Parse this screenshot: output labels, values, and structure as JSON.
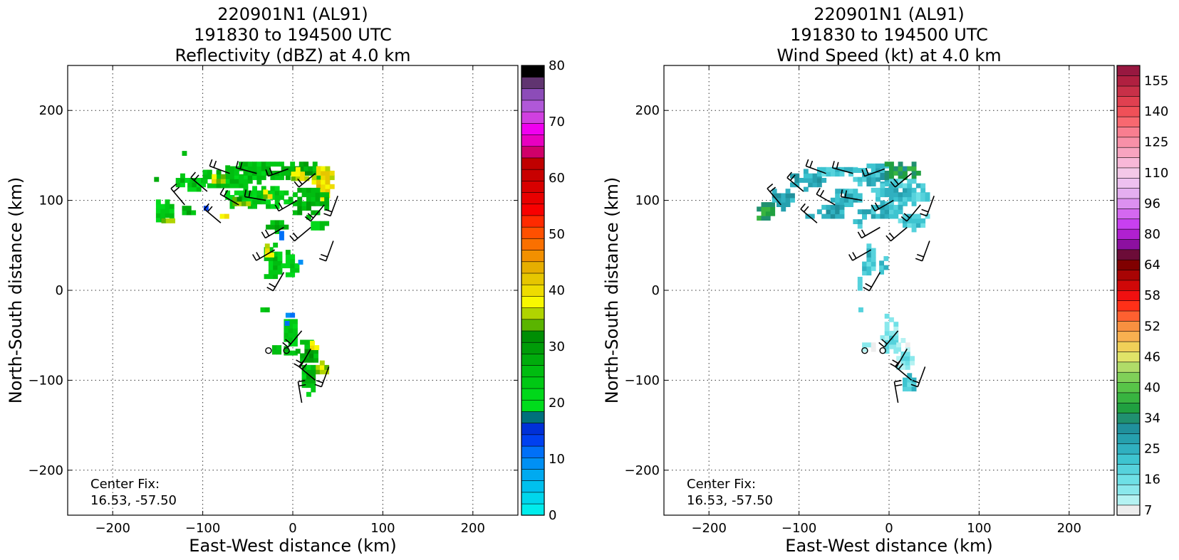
{
  "chart_data": [
    {
      "type": "heatmap",
      "title_lines": [
        "220901N1 (AL91)",
        "191830 to 194500 UTC",
        "Reflectivity (dBZ) at 4.0 km"
      ],
      "xlabel": "East-West distance (km)",
      "ylabel": "North-South distance (km)",
      "xlim": [
        -250,
        250
      ],
      "ylim": [
        -250,
        250
      ],
      "xticks": [
        -200,
        -100,
        0,
        100,
        200
      ],
      "yticks": [
        -200,
        -100,
        0,
        100,
        200
      ],
      "grid": true,
      "annotation": [
        "Center Fix:",
        "16.53, -57.50"
      ],
      "colorbar": {
        "label_values": [
          0,
          10,
          20,
          30,
          40,
          50,
          60,
          70,
          80
        ],
        "labels": [
          "0",
          "10",
          "20",
          "30",
          "40",
          "50",
          "60",
          "70",
          "80"
        ],
        "range": [
          0,
          80
        ],
        "colors": [
          "#00ecec",
          "#00d6ec",
          "#00c0ee",
          "#00aaf0",
          "#0090f4",
          "#0070f8",
          "#0040f0",
          "#0030d8",
          "#00707c",
          "#00dc1c",
          "#00d81a",
          "#00c814",
          "#00bc10",
          "#00ac0c",
          "#009c08",
          "#008e04",
          "#5ab400",
          "#b0d400",
          "#f8f800",
          "#eedc00",
          "#e6c600",
          "#e6ae00",
          "#f29000",
          "#fa7000",
          "#ff5000",
          "#ff2a00",
          "#f80000",
          "#e80000",
          "#d80000",
          "#c80000",
          "#c00000",
          "#d0006a",
          "#e800c0",
          "#f000f0",
          "#d040e0",
          "#b058d8",
          "#8c4cb8",
          "#603470",
          "#000000"
        ]
      },
      "echo_cells": [
        {
          "x": -110,
          "y": 115,
          "rx": 12,
          "ry": 10,
          "dbz": 24
        },
        {
          "x": -95,
          "y": 125,
          "rx": 6,
          "ry": 6,
          "dbz": 38
        },
        {
          "x": -75,
          "y": 122,
          "rx": 30,
          "ry": 13,
          "dbz": 25
        },
        {
          "x": -85,
          "y": 120,
          "rx": 10,
          "ry": 6,
          "dbz": 37
        },
        {
          "x": -125,
          "y": 118,
          "rx": 10,
          "ry": 8,
          "dbz": 23
        },
        {
          "x": -40,
          "y": 130,
          "rx": 35,
          "ry": 12,
          "dbz": 26
        },
        {
          "x": 10,
          "y": 130,
          "rx": 28,
          "ry": 12,
          "dbz": 28
        },
        {
          "x": 5,
          "y": 125,
          "rx": 12,
          "ry": 8,
          "dbz": 38
        },
        {
          "x": 30,
          "y": 115,
          "rx": 14,
          "ry": 22,
          "dbz": 39
        },
        {
          "x": -40,
          "y": 100,
          "rx": 40,
          "ry": 14,
          "dbz": 24
        },
        {
          "x": 15,
          "y": 95,
          "rx": 25,
          "ry": 16,
          "dbz": 27
        },
        {
          "x": -60,
          "y": 95,
          "rx": 12,
          "ry": 6,
          "dbz": 36
        },
        {
          "x": -30,
          "y": 103,
          "rx": 8,
          "ry": 6,
          "dbz": 37
        },
        {
          "x": -145,
          "y": 85,
          "rx": 12,
          "ry": 14,
          "dbz": 24
        },
        {
          "x": -140,
          "y": 75,
          "rx": 6,
          "ry": 5,
          "dbz": 38
        },
        {
          "x": -120,
          "y": 85,
          "rx": 8,
          "ry": 6,
          "dbz": 26
        },
        {
          "x": -80,
          "y": 80,
          "rx": 6,
          "ry": 5,
          "dbz": 37
        },
        {
          "x": -20,
          "y": 70,
          "rx": 15,
          "ry": 7,
          "dbz": 25
        },
        {
          "x": 25,
          "y": 70,
          "rx": 15,
          "ry": 8,
          "dbz": 24
        },
        {
          "x": -25,
          "y": 30,
          "rx": 12,
          "ry": 22,
          "dbz": 26
        },
        {
          "x": -30,
          "y": 40,
          "rx": 6,
          "ry": 8,
          "dbz": 37
        },
        {
          "x": -5,
          "y": 25,
          "rx": 8,
          "ry": 20,
          "dbz": 24
        },
        {
          "x": 5,
          "y": 30,
          "rx": 4,
          "ry": 6,
          "dbz": 11
        },
        {
          "x": -5,
          "y": -55,
          "rx": 10,
          "ry": 22,
          "dbz": 25
        },
        {
          "x": 15,
          "y": -70,
          "rx": 12,
          "ry": 15,
          "dbz": 27
        },
        {
          "x": 20,
          "y": -65,
          "rx": 6,
          "ry": 6,
          "dbz": 38
        },
        {
          "x": 30,
          "y": -90,
          "rx": 10,
          "ry": 8,
          "dbz": 38
        },
        {
          "x": 15,
          "y": -100,
          "rx": 10,
          "ry": 18,
          "dbz": 25
        },
        {
          "x": -35,
          "y": -25,
          "rx": 6,
          "ry": 4,
          "dbz": 25
        },
        {
          "x": -10,
          "y": -40,
          "rx": 4,
          "ry": 4,
          "dbz": 10
        },
        {
          "x": -5,
          "y": -30,
          "rx": 3,
          "ry": 5,
          "dbz": 11
        },
        {
          "x": -20,
          "y": -70,
          "rx": 8,
          "ry": 6,
          "dbz": 24
        },
        {
          "x": -100,
          "y": 90,
          "rx": 4,
          "ry": 6,
          "dbz": 11
        },
        {
          "x": -15,
          "y": 60,
          "rx": 5,
          "ry": 4,
          "dbz": 11
        },
        {
          "x": -155,
          "y": 120,
          "rx": 4,
          "ry": 4,
          "dbz": 25
        },
        {
          "x": -125,
          "y": 148,
          "rx": 8,
          "ry": 3,
          "dbz": 25
        }
      ],
      "center_circles": [
        {
          "x": -27,
          "y": -67
        },
        {
          "x": -7,
          "y": -67
        }
      ],
      "wind_barbs": [
        {
          "x": -120,
          "y": 95,
          "ang": 50
        },
        {
          "x": -95,
          "y": 110,
          "ang": 40
        },
        {
          "x": -70,
          "y": 130,
          "ang": 20
        },
        {
          "x": -40,
          "y": 130,
          "ang": 15
        },
        {
          "x": -5,
          "y": 135,
          "ang": -20
        },
        {
          "x": 25,
          "y": 130,
          "ang": -40
        },
        {
          "x": 50,
          "y": 105,
          "ang": -70
        },
        {
          "x": -60,
          "y": 95,
          "ang": 30
        },
        {
          "x": -30,
          "y": 100,
          "ang": 10
        },
        {
          "x": 5,
          "y": 100,
          "ang": -30
        },
        {
          "x": 35,
          "y": 95,
          "ang": -50
        },
        {
          "x": -80,
          "y": 75,
          "ang": 40
        },
        {
          "x": -10,
          "y": 70,
          "ang": -30
        },
        {
          "x": 20,
          "y": 70,
          "ang": -40
        },
        {
          "x": 45,
          "y": 55,
          "ang": -70
        },
        {
          "x": -20,
          "y": 45,
          "ang": -30
        },
        {
          "x": -10,
          "y": 20,
          "ang": -60
        },
        {
          "x": 10,
          "y": -45,
          "ang": -50
        },
        {
          "x": 20,
          "y": -65,
          "ang": -60
        },
        {
          "x": 40,
          "y": -85,
          "ang": -70
        },
        {
          "x": 25,
          "y": -100,
          "ang": 40
        },
        {
          "x": 10,
          "y": -125,
          "ang": 80
        }
      ]
    },
    {
      "type": "heatmap",
      "title_lines": [
        "220901N1 (AL91)",
        "191830 to 194500 UTC",
        "Wind Speed (kt) at 4.0 km"
      ],
      "xlabel": "East-West distance (km)",
      "ylabel": "North-South distance (km)",
      "xlim": [
        -250,
        250
      ],
      "ylim": [
        -250,
        250
      ],
      "xticks": [
        -200,
        -100,
        0,
        100,
        200
      ],
      "yticks": [
        -200,
        -100,
        0,
        100,
        200
      ],
      "grid": true,
      "annotation": [
        "Center Fix:",
        "16.53, -57.50"
      ],
      "colorbar": {
        "labels": [
          "7",
          "16",
          "25",
          "34",
          "40",
          "46",
          "52",
          "58",
          "64",
          "80",
          "96",
          "110",
          "125",
          "140",
          "155"
        ],
        "colors": [
          "#ededed",
          "#b4f2f2",
          "#8ae8ec",
          "#6ee0e6",
          "#56d2dc",
          "#3ec4d0",
          "#30b0c0",
          "#26a0ae",
          "#20909c",
          "#209070",
          "#20a040",
          "#38b440",
          "#58c448",
          "#80d058",
          "#b0dc68",
          "#e0e468",
          "#f0d058",
          "#f8b050",
          "#f89040",
          "#ff6030",
          "#ff3018",
          "#f01010",
          "#d00808",
          "#a80404",
          "#800000",
          "#6c0c38",
          "#8c10a0",
          "#b020d0",
          "#c840f0",
          "#d468f0",
          "#dc90f0",
          "#e4aef0",
          "#eec0f0",
          "#f4c8e8",
          "#f8b8d8",
          "#f8a4c0",
          "#f890a8",
          "#f87e90",
          "#f86870",
          "#f05058",
          "#e04050",
          "#c83048",
          "#b02040",
          "#981840"
        ]
      },
      "echo_cells": [
        {
          "x": -140,
          "y": 85,
          "rx": 12,
          "ry": 12,
          "kt": 22
        },
        {
          "x": -120,
          "y": 100,
          "rx": 15,
          "ry": 12,
          "kt": 15
        },
        {
          "x": -95,
          "y": 120,
          "rx": 20,
          "ry": 10,
          "kt": 15
        },
        {
          "x": -60,
          "y": 130,
          "rx": 25,
          "ry": 8,
          "kt": 12
        },
        {
          "x": -20,
          "y": 125,
          "rx": 25,
          "ry": 14,
          "kt": 14
        },
        {
          "x": 10,
          "y": 130,
          "rx": 25,
          "ry": 12,
          "kt": 22
        },
        {
          "x": 10,
          "y": 105,
          "rx": 35,
          "ry": 16,
          "kt": 12
        },
        {
          "x": -50,
          "y": 100,
          "rx": 20,
          "ry": 12,
          "kt": 13
        },
        {
          "x": -65,
          "y": 85,
          "rx": 15,
          "ry": 10,
          "kt": 15
        },
        {
          "x": -10,
          "y": 85,
          "rx": 25,
          "ry": 10,
          "kt": 14
        },
        {
          "x": 25,
          "y": 75,
          "rx": 20,
          "ry": 10,
          "kt": 12
        },
        {
          "x": -35,
          "y": 75,
          "rx": 10,
          "ry": 6,
          "kt": 12
        },
        {
          "x": -90,
          "y": 80,
          "rx": 8,
          "ry": 5,
          "kt": 14
        },
        {
          "x": -25,
          "y": 30,
          "rx": 10,
          "ry": 18,
          "kt": 12
        },
        {
          "x": -10,
          "y": 25,
          "rx": 6,
          "ry": 12,
          "kt": 13
        },
        {
          "x": -35,
          "y": 5,
          "rx": 5,
          "ry": 5,
          "kt": 12
        },
        {
          "x": 0,
          "y": -55,
          "rx": 10,
          "ry": 20,
          "kt": 6
        },
        {
          "x": 15,
          "y": -75,
          "rx": 12,
          "ry": 18,
          "kt": 5
        },
        {
          "x": -25,
          "y": -65,
          "rx": 10,
          "ry": 8,
          "kt": 5
        },
        {
          "x": 20,
          "y": -105,
          "rx": 10,
          "ry": 12,
          "kt": 12
        },
        {
          "x": -35,
          "y": -25,
          "rx": 4,
          "ry": 4,
          "kt": 6
        },
        {
          "x": -5,
          "y": -30,
          "rx": 5,
          "ry": 6,
          "kt": 6
        }
      ],
      "center_circles": [
        {
          "x": -27,
          "y": -67
        },
        {
          "x": -7,
          "y": -67
        }
      ],
      "wind_barbs": [
        {
          "x": -120,
          "y": 95,
          "ang": 50
        },
        {
          "x": -95,
          "y": 110,
          "ang": 40
        },
        {
          "x": -70,
          "y": 130,
          "ang": 20
        },
        {
          "x": -40,
          "y": 130,
          "ang": 15
        },
        {
          "x": -5,
          "y": 135,
          "ang": -20
        },
        {
          "x": 25,
          "y": 130,
          "ang": -40
        },
        {
          "x": 50,
          "y": 105,
          "ang": -70
        },
        {
          "x": -60,
          "y": 95,
          "ang": 30
        },
        {
          "x": -30,
          "y": 100,
          "ang": 10
        },
        {
          "x": 5,
          "y": 100,
          "ang": -30
        },
        {
          "x": 35,
          "y": 95,
          "ang": -50
        },
        {
          "x": -80,
          "y": 75,
          "ang": 40
        },
        {
          "x": -10,
          "y": 70,
          "ang": -30
        },
        {
          "x": 20,
          "y": 70,
          "ang": -40
        },
        {
          "x": 45,
          "y": 55,
          "ang": -70
        },
        {
          "x": -20,
          "y": 45,
          "ang": -30
        },
        {
          "x": -10,
          "y": 20,
          "ang": -60
        },
        {
          "x": 10,
          "y": -45,
          "ang": -50
        },
        {
          "x": 20,
          "y": -65,
          "ang": -60
        },
        {
          "x": 40,
          "y": -85,
          "ang": -70
        },
        {
          "x": 25,
          "y": -100,
          "ang": 40
        },
        {
          "x": 10,
          "y": -125,
          "ang": 80
        }
      ]
    }
  ]
}
